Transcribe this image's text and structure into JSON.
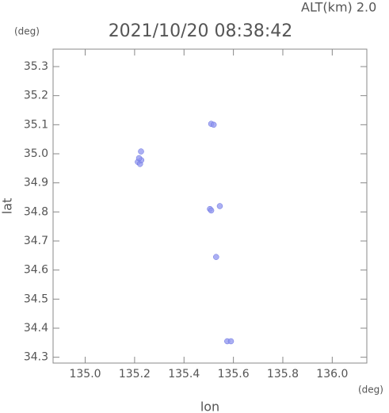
{
  "chart_data": {
    "type": "scatter",
    "title": "2021/10/20 08:38:42",
    "annotation": "ALT(km) 2.0",
    "x_unit": "(deg)",
    "y_unit": "(deg)",
    "x_label": "lon",
    "y_label": "lat",
    "x": [
      135.213,
      135.222,
      135.227,
      135.218,
      135.226,
      135.51,
      135.52,
      135.505,
      135.51,
      135.545,
      135.53,
      135.575,
      135.59
    ],
    "y": [
      34.972,
      34.965,
      34.978,
      34.985,
      35.008,
      35.103,
      35.1,
      34.81,
      34.805,
      34.82,
      34.645,
      34.355,
      34.355
    ],
    "color": "#8f94ef",
    "xlim": [
      134.87,
      136.14
    ],
    "ylim": [
      34.28,
      35.36
    ],
    "xticks": [
      {
        "value": 135.0,
        "label": "135.0"
      },
      {
        "value": 135.2,
        "label": "135.2"
      },
      {
        "value": 135.4,
        "label": "135.4"
      },
      {
        "value": 135.6,
        "label": "135.6"
      },
      {
        "value": 135.8,
        "label": "135.8"
      },
      {
        "value": 136.0,
        "label": "136.0"
      }
    ],
    "yticks": [
      34.3,
      34.4,
      34.5,
      34.6,
      34.7,
      34.8,
      34.9,
      {
        "value": 35.0,
        "label": "35.0"
      },
      35.1,
      35.2,
      35.3
    ]
  }
}
